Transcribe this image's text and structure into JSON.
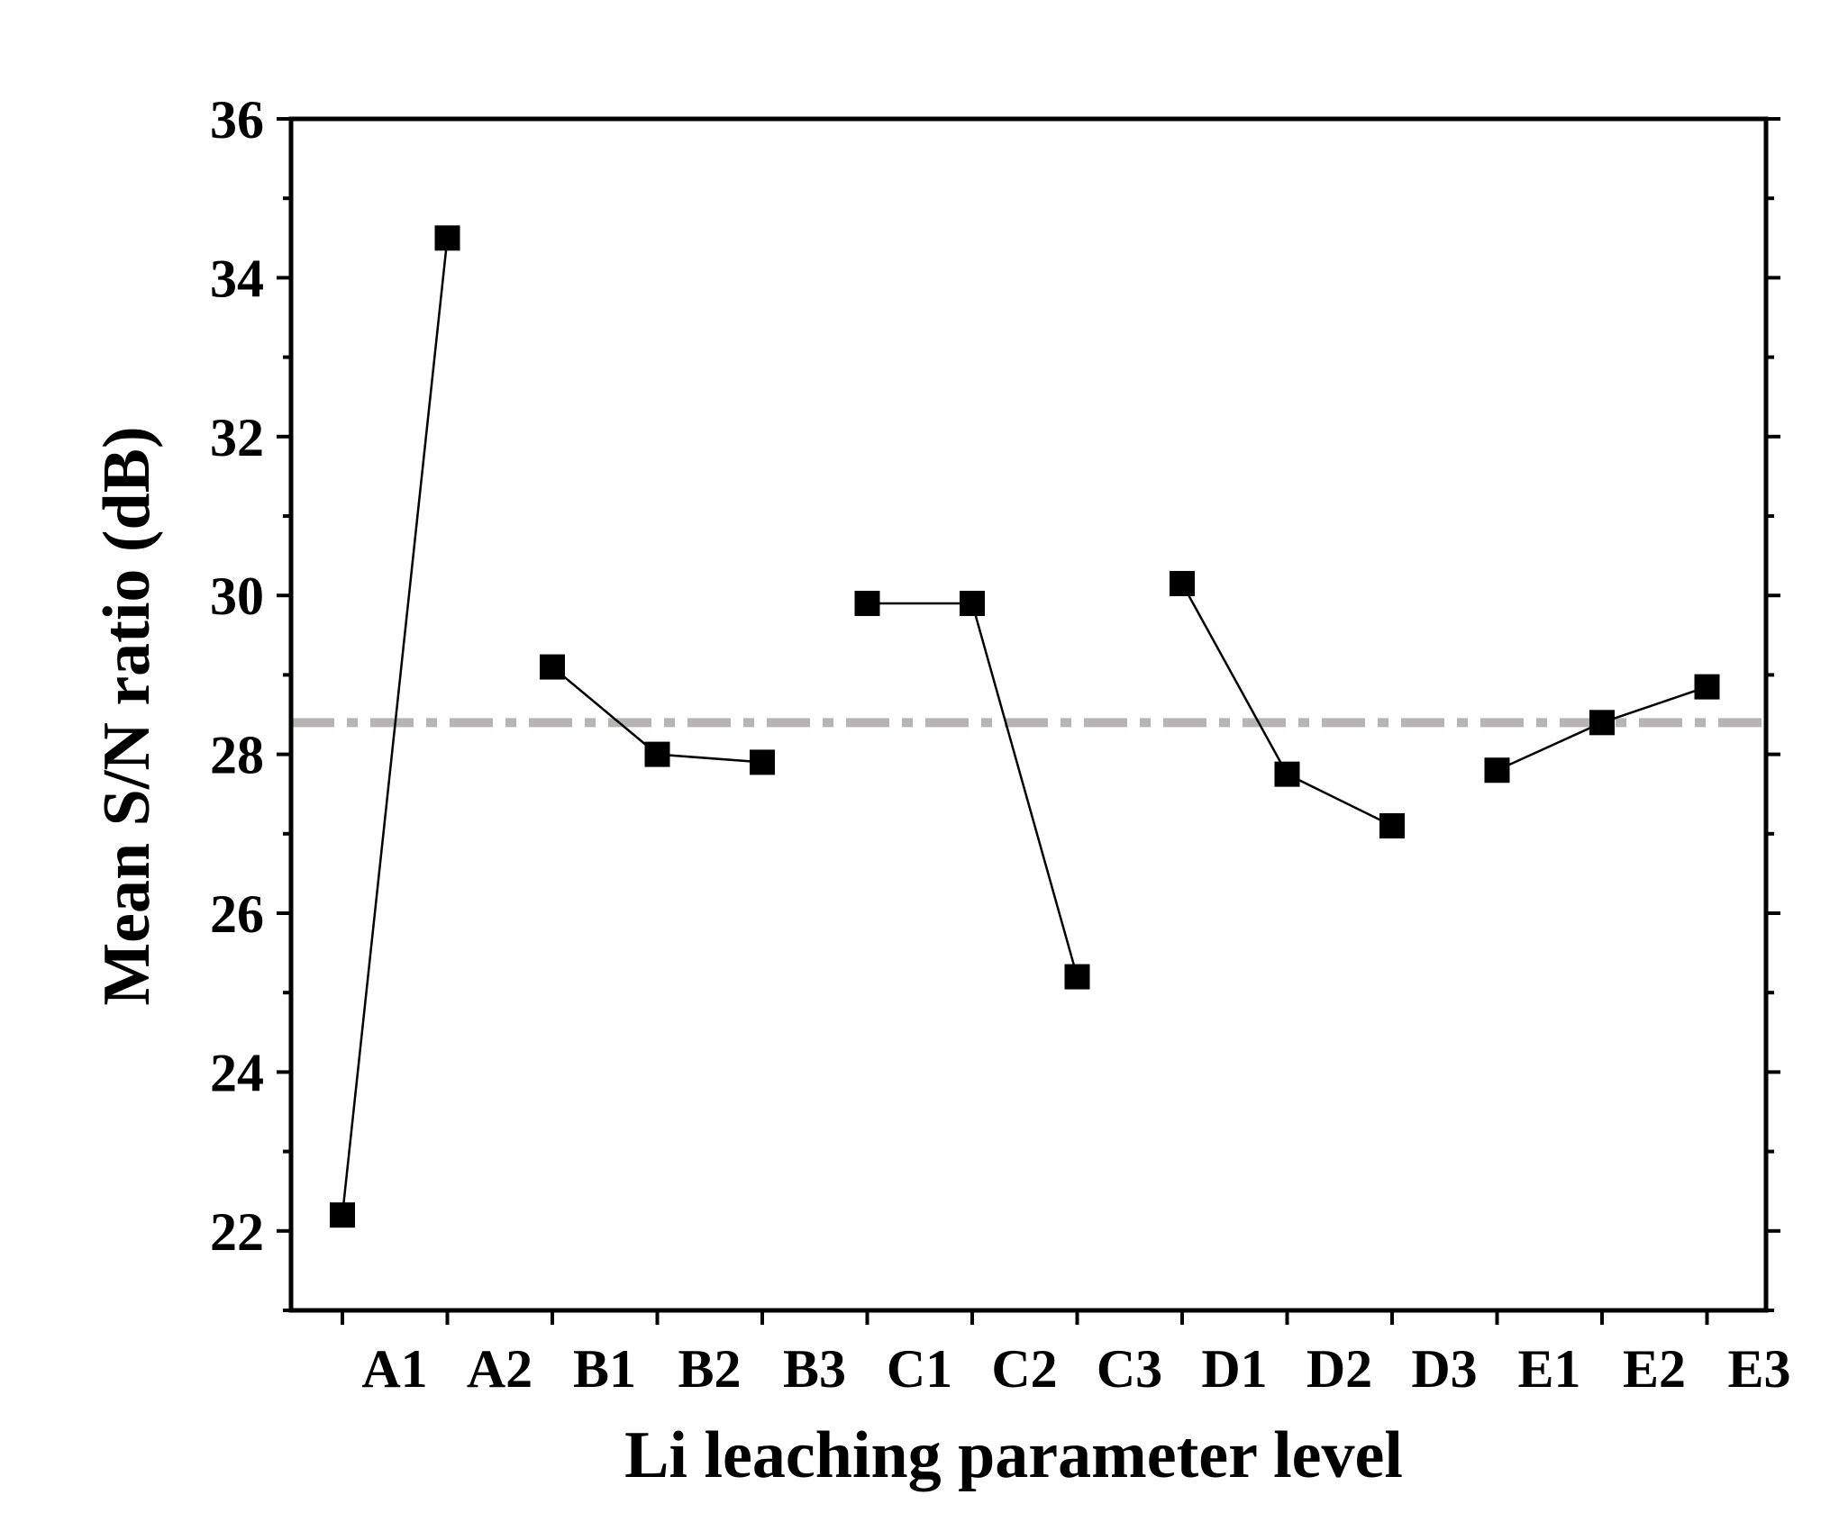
{
  "chart_data": {
    "type": "line",
    "xlabel": "Li leaching parameter level",
    "ylabel": "Mean S/N ratio (dB)",
    "ylim": [
      21,
      36
    ],
    "yticks": [
      22,
      24,
      26,
      28,
      30,
      32,
      34,
      36
    ],
    "categories": [
      "A1",
      "A2",
      "B1",
      "B2",
      "B3",
      "C1",
      "C2",
      "C3",
      "D1",
      "D2",
      "D3",
      "E1",
      "E2",
      "E3"
    ],
    "groups": [
      {
        "categories": [
          "A1",
          "A2"
        ],
        "values": [
          22.2,
          34.5
        ]
      },
      {
        "categories": [
          "B1",
          "B2",
          "B3"
        ],
        "values": [
          29.1,
          28.0,
          27.9
        ]
      },
      {
        "categories": [
          "C1",
          "C2",
          "C3"
        ],
        "values": [
          29.9,
          29.9,
          25.2
        ]
      },
      {
        "categories": [
          "D1",
          "D2",
          "D3"
        ],
        "values": [
          30.15,
          27.75,
          27.1
        ]
      },
      {
        "categories": [
          "E1",
          "E2",
          "E3"
        ],
        "values": [
          27.8,
          28.4,
          28.85
        ]
      }
    ],
    "reference_line": {
      "value": 28.4,
      "style": "dash-dot",
      "color": "#b8b4b4"
    },
    "marker": "square",
    "colors": {
      "series": "#000000",
      "reference": "#b8b4b4"
    },
    "grid": false,
    "legend": "none"
  }
}
